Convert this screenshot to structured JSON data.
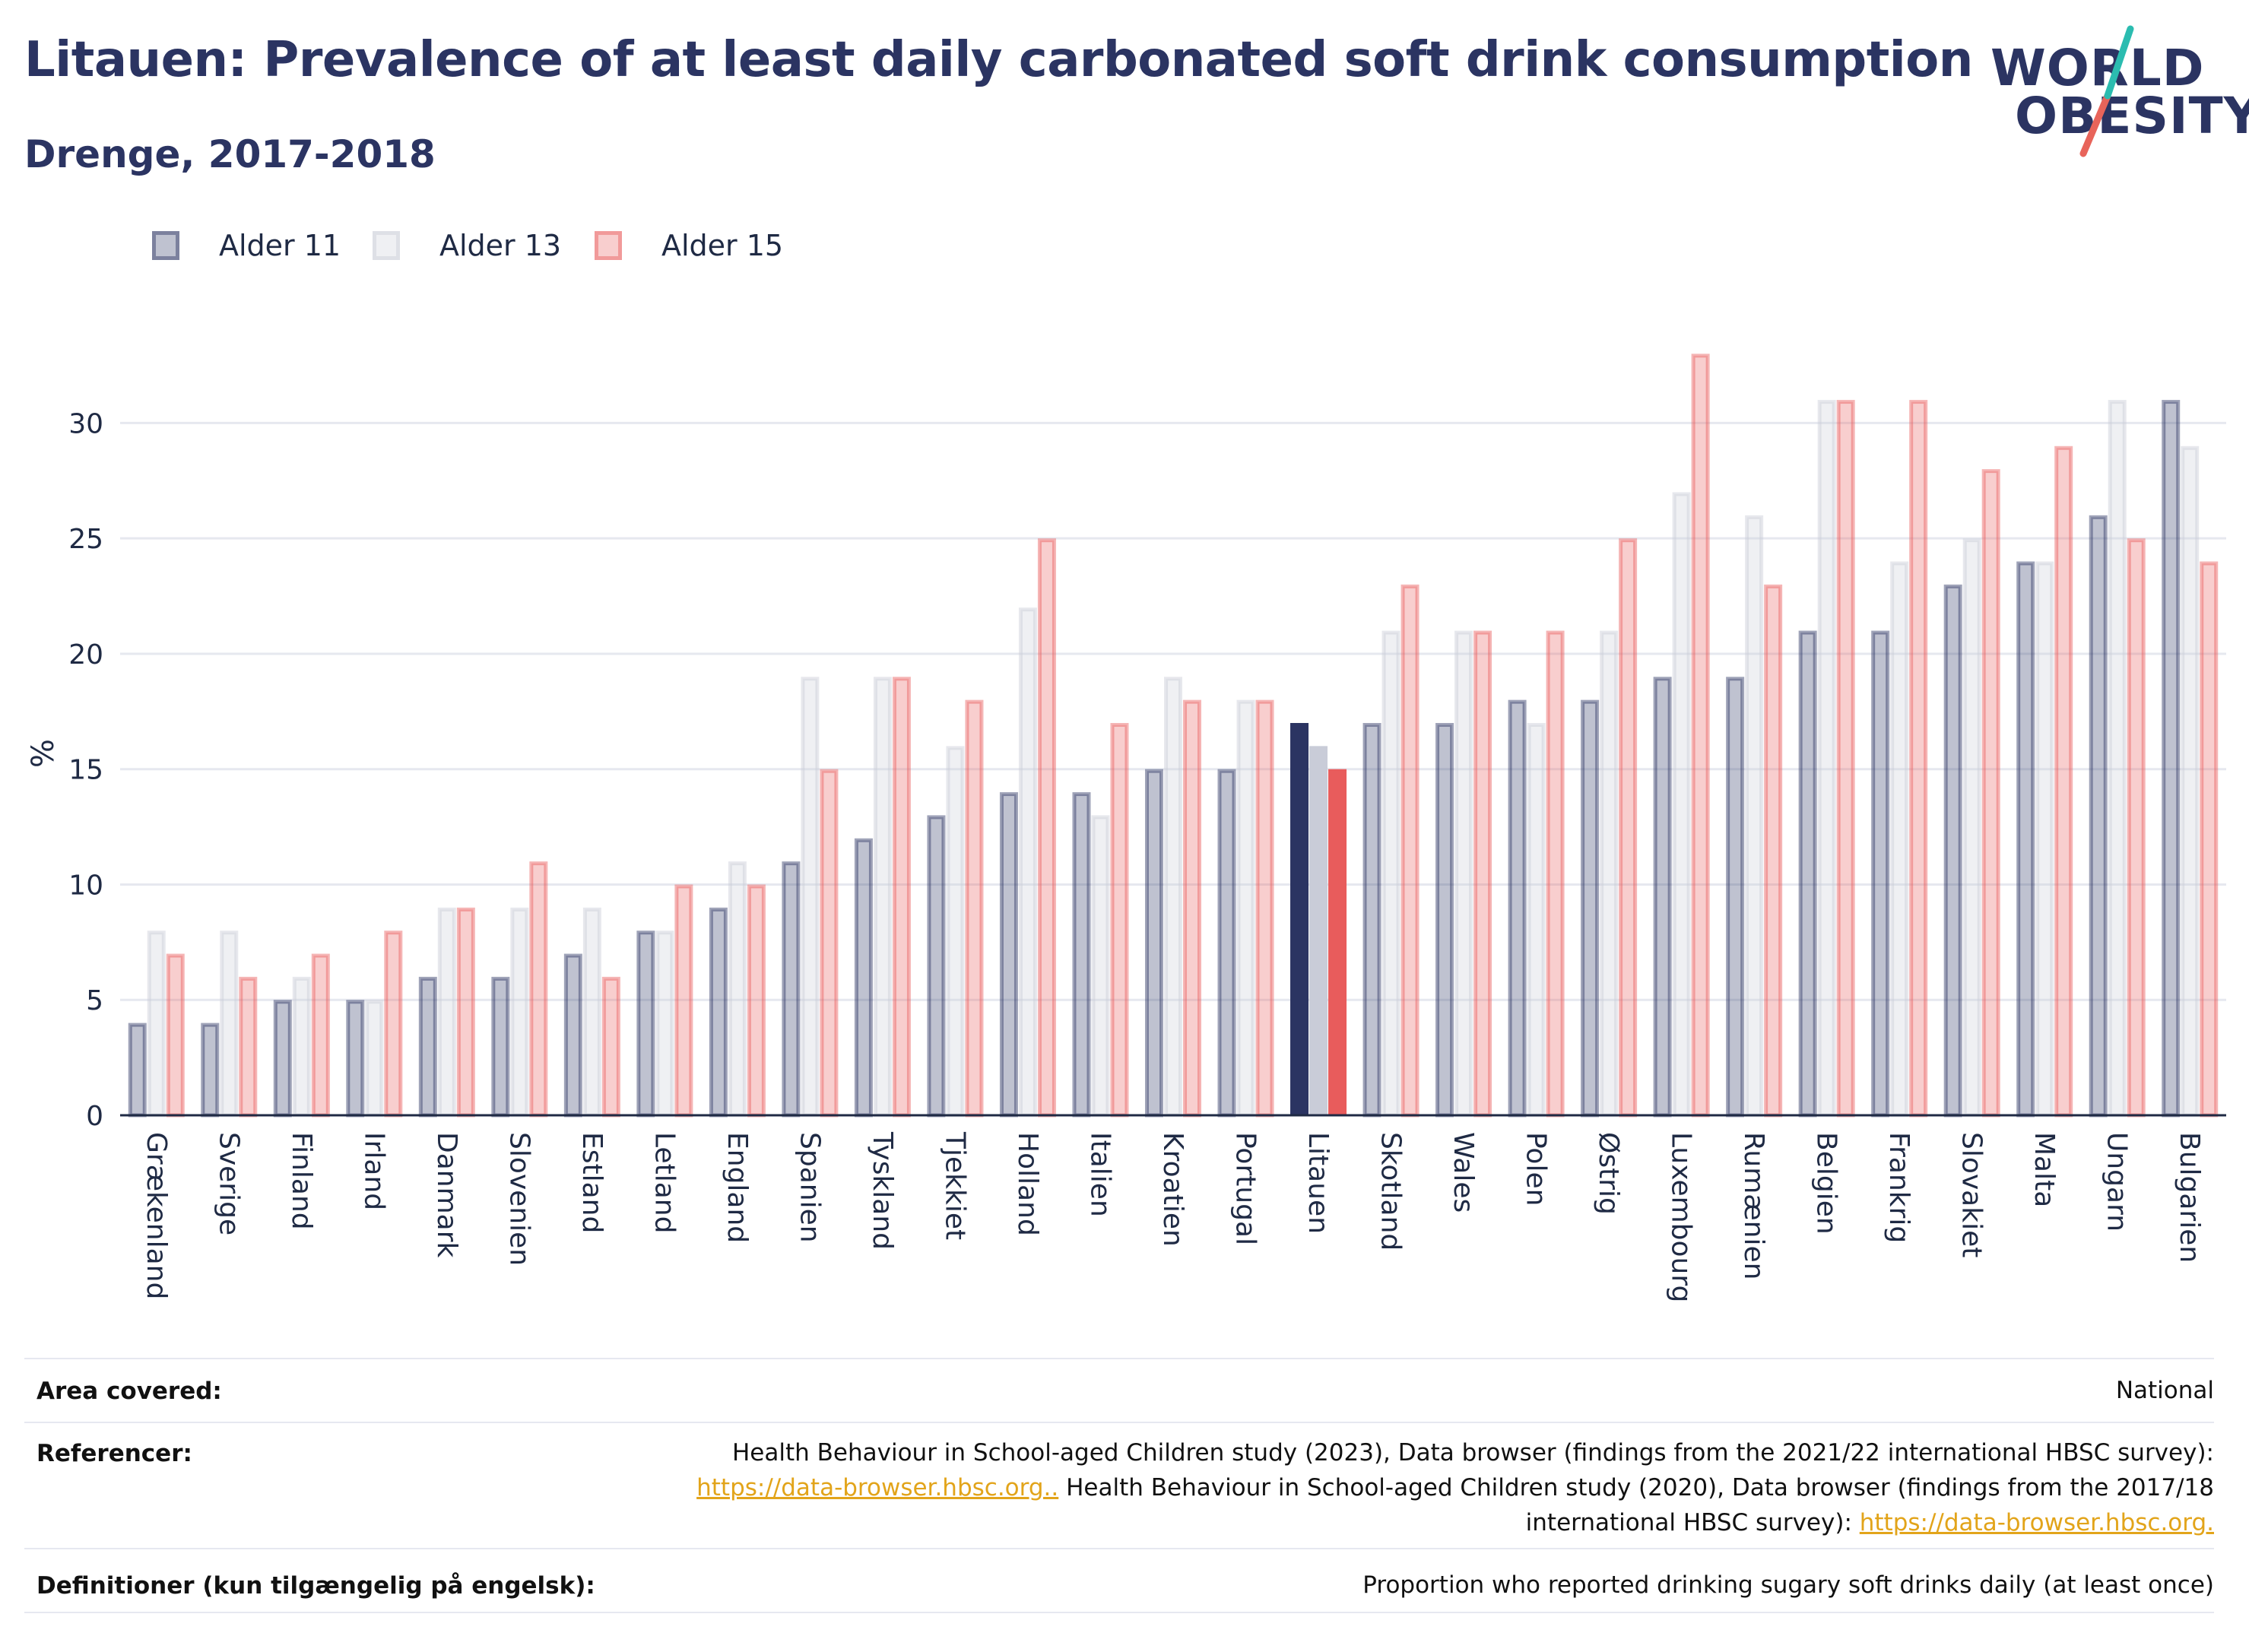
{
  "title": "Litauen: Prevalence of at least daily carbonated soft drink consumption",
  "subtitle": "Drenge, 2017-2018",
  "logo": {
    "line1": "WORLD",
    "line2": "OBESITY"
  },
  "colors": {
    "age11": "#2b3462",
    "age13": "#c9ccd8",
    "age15": "#e85c5c",
    "grid": "#e6e8ef",
    "axis": "#1f2a44"
  },
  "chart_data": {
    "type": "bar",
    "ylabel": "%",
    "ylim": [
      0,
      35
    ],
    "yticks": [
      0,
      5,
      10,
      15,
      20,
      25,
      30
    ],
    "legend_position": "top-left",
    "grid": true,
    "highlight": "Litauen",
    "categories": [
      "Grækenland",
      "Sverige",
      "Finland",
      "Irland",
      "Danmark",
      "Slovenien",
      "Estland",
      "Letland",
      "England",
      "Spanien",
      "Tyskland",
      "Tjekkiet",
      "Holland",
      "Italien",
      "Kroatien",
      "Portugal",
      "Litauen",
      "Skotland",
      "Wales",
      "Polen",
      "Østrig",
      "Luxembourg",
      "Rumænien",
      "Belgien",
      "Frankrig",
      "Slovakiet",
      "Malta",
      "Ungarn",
      "Bulgarien"
    ],
    "series": [
      {
        "name": "Alder 11",
        "values": [
          4,
          4,
          5,
          5,
          6,
          6,
          7,
          8,
          9,
          11,
          12,
          13,
          14,
          14,
          15,
          15,
          17,
          17,
          17,
          18,
          18,
          19,
          19,
          21,
          21,
          23,
          24,
          26,
          31
        ]
      },
      {
        "name": "Alder 13",
        "values": [
          8,
          8,
          6,
          5,
          9,
          9,
          9,
          8,
          11,
          19,
          19,
          16,
          22,
          13,
          19,
          18,
          16,
          21,
          21,
          17,
          21,
          27,
          26,
          31,
          24,
          25,
          24,
          31,
          29
        ]
      },
      {
        "name": "Alder 15",
        "values": [
          7,
          6,
          7,
          8,
          9,
          11,
          6,
          10,
          10,
          15,
          19,
          18,
          25,
          17,
          18,
          18,
          15,
          23,
          21,
          21,
          25,
          33,
          23,
          31,
          31,
          28,
          29,
          25,
          24
        ]
      }
    ]
  },
  "table": {
    "area_label": "Area covered:",
    "area_value": "National",
    "ref_label": "Referencer:",
    "ref_line1": "Health Behaviour in School-aged Children study (2023), Data browser (findings from the 2021/22 international HBSC survey):",
    "ref_link1": "https://data-browser.hbsc.org..",
    "ref_line2_mid": " Health Behaviour in School-aged Children study (2020), Data browser (findings from the 2017/18",
    "ref_line3": "international HBSC survey): ",
    "ref_link2": "https://data-browser.hbsc.org.",
    "def_label": "Definitioner (kun tilgængelig på engelsk):",
    "def_value": "Proportion who reported drinking sugary soft drinks daily (at least once)"
  }
}
